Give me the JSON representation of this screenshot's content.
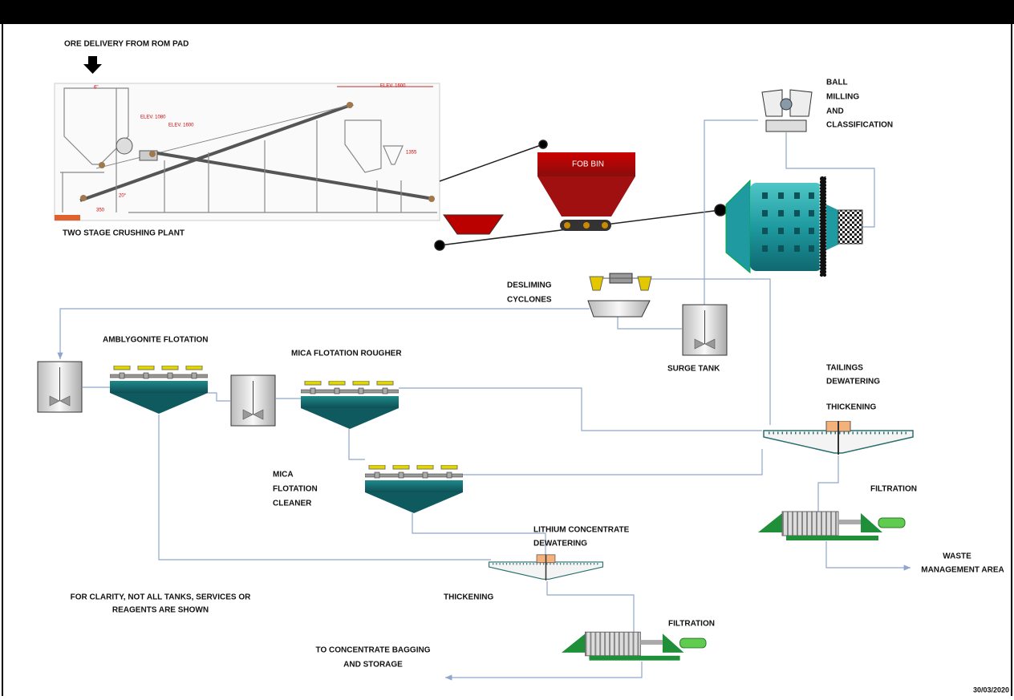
{
  "ore_delivery": "ORE DELIVERY FROM ROM PAD",
  "crushing_plant": "TWO STAGE CRUSHING PLANT",
  "crusher_annotations": [
    "6\"",
    "ELEV. 1080",
    "ELEV. 1600",
    "ELEV. 1600",
    "1355",
    "20°",
    "350"
  ],
  "fob_bin": "FOB BIN",
  "ball_milling": [
    "BALL",
    "MILLING",
    "AND",
    "CLASSIFICATION"
  ],
  "desliming": [
    "DESLIMING",
    "CYCLONES"
  ],
  "surge_tank": "SURGE TANK",
  "amblygonite": "AMBLYGONITE FLOTATION",
  "mica_rougher": "MICA FLOTATION ROUGHER",
  "mica_cleaner": [
    "MICA",
    "FLOTATION",
    "CLEANER"
  ],
  "tailings": [
    "TAILINGS",
    "DEWATERING"
  ],
  "tailings_thickening": "THICKENING",
  "tailings_filtration": "FILTRATION",
  "waste": [
    "WASTE",
    "MANAGEMENT AREA"
  ],
  "lithium": [
    "LITHIUM CONCENTRATE",
    "DEWATERING"
  ],
  "lithium_thickening": "THICKENING",
  "lithium_filtration": "FILTRATION",
  "bagging": [
    "TO CONCENTRATE BAGGING",
    "AND STORAGE"
  ],
  "note": [
    "FOR CLARITY, NOT ALL TANKS, SERVICES OR",
    "REAGENTS ARE SHOWN"
  ],
  "date": "30/03/2020"
}
